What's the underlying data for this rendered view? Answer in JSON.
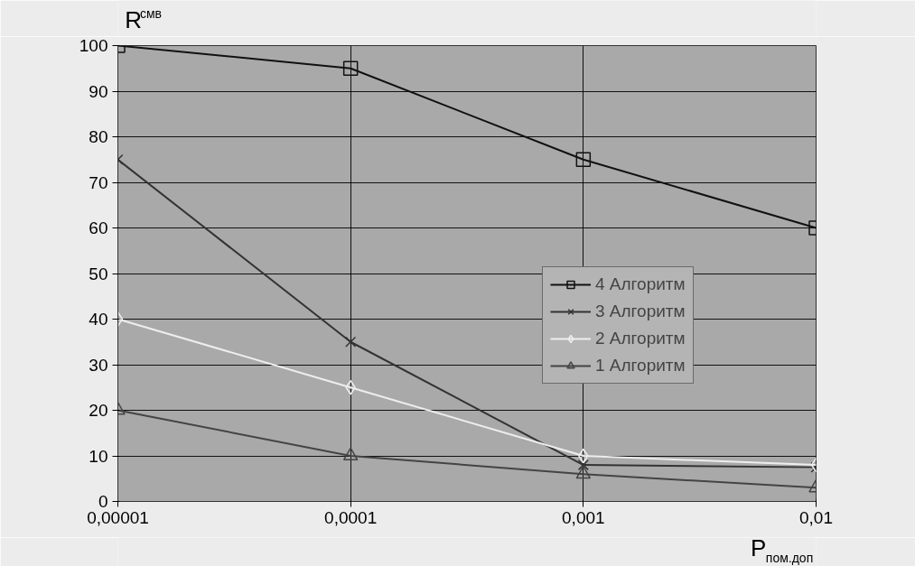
{
  "chart_data": {
    "type": "line",
    "ylabel": "R$^{смв}$",
    "xlabel": "P$_{пом.доп}$",
    "x": [
      1e-05,
      0.0001,
      0.001,
      0.01
    ],
    "log": "x",
    "xlim": [
      1e-05,
      0.01
    ],
    "xticks": [
      {
        "value": 1e-05,
        "label": "0,00001"
      },
      {
        "value": 0.0001,
        "label": "0,0001"
      },
      {
        "value": 0.001,
        "label": "0,001"
      },
      {
        "value": 0.01,
        "label": "0,01"
      }
    ],
    "ylim": [
      0,
      100
    ],
    "yticks": [
      0,
      10,
      20,
      30,
      40,
      50,
      60,
      70,
      80,
      90,
      100
    ],
    "grid": true,
    "legend": "right",
    "series": [
      {
        "name": "4 Алгоритм",
        "color": "#111111",
        "marker": "square",
        "values": [
          100,
          95,
          75,
          60
        ]
      },
      {
        "name": "3 Алгоритм",
        "color": "#333333",
        "marker": "cross",
        "values": [
          75,
          35,
          8,
          7.5
        ]
      },
      {
        "name": "2 Алгоритм",
        "color": "#eeeeee",
        "marker": "diamond",
        "values": [
          40,
          25,
          10,
          8
        ]
      },
      {
        "name": "1 Алгоритм",
        "color": "#444444",
        "marker": "triangle",
        "values": [
          20,
          10,
          6,
          3
        ]
      }
    ]
  }
}
